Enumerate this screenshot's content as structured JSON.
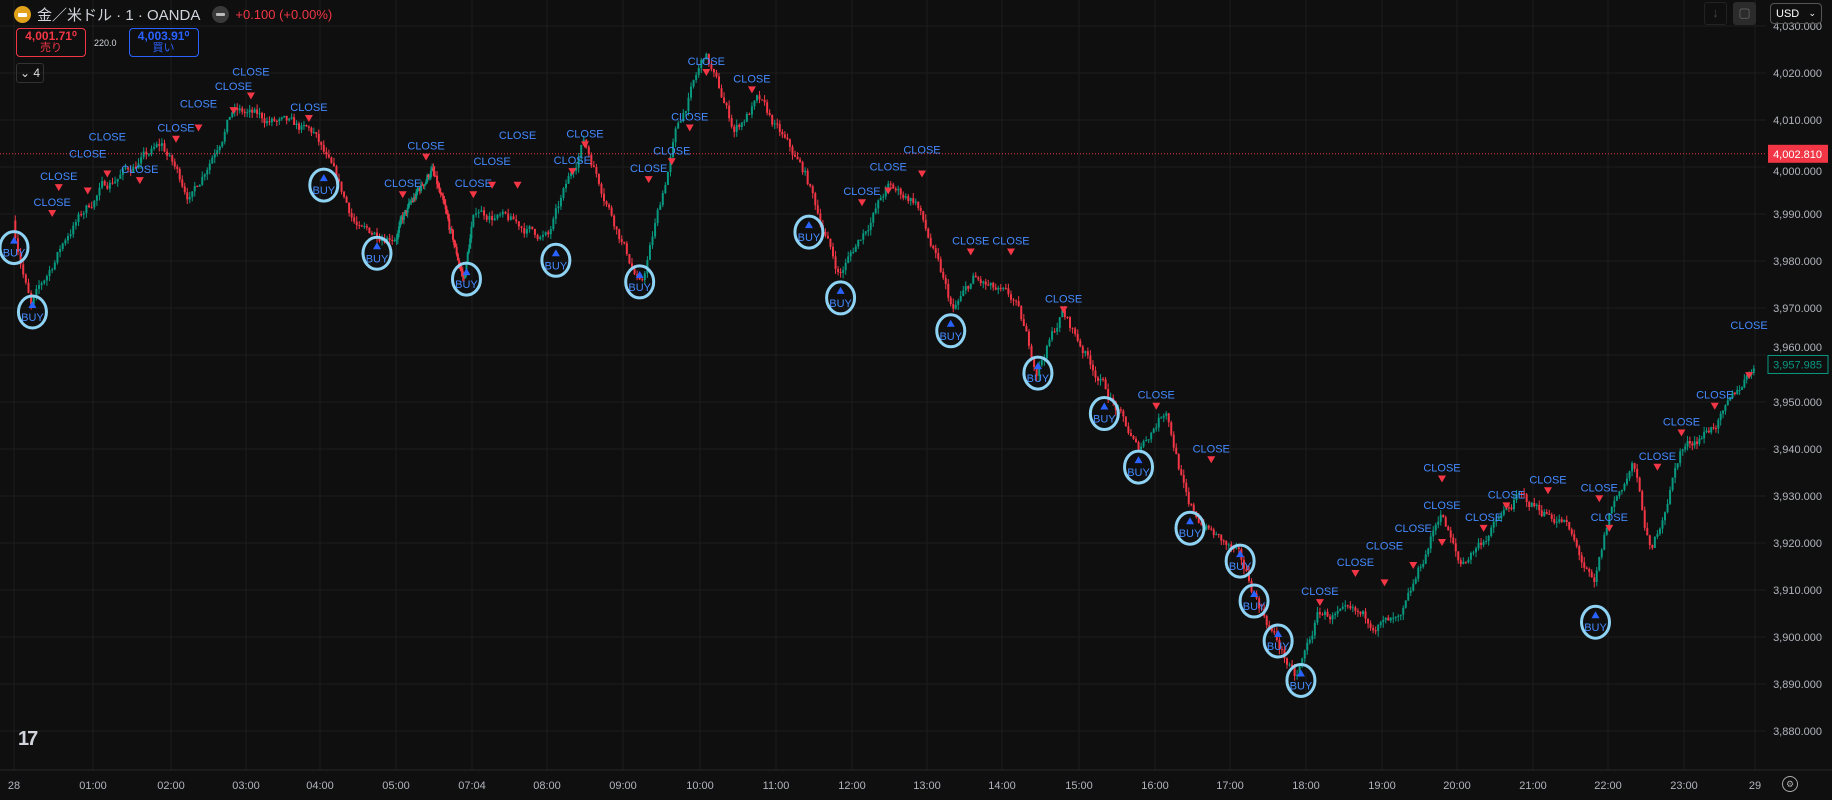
{
  "header": {
    "symbol_title": "金／米ドル · 1 · OANDA",
    "change": "+0.100 (+0.00%)",
    "sell_price": "4,001.71⁰",
    "sell_label": "売り",
    "spread": "220.0",
    "buy_price": "4,003.91⁰",
    "buy_label": "買い",
    "indicators_count": "4"
  },
  "toolbar": {
    "currency": "USD"
  },
  "colors": {
    "background": "#0f0f0f",
    "up": "#089981",
    "down": "#f23645",
    "marker_text": "#448aff",
    "buy_marker": "#2962ff",
    "highlight_circle": "#8fd3f4",
    "price_line": "#f23645"
  },
  "chart_data": {
    "type": "candlestick",
    "price_axis": {
      "ticks": [
        "4,030.000",
        "4,020.000",
        "4,010.000",
        "4,000.000",
        "3,990.000",
        "3,980.000",
        "3,970.000",
        "3,960.000",
        "3,950.000",
        "3,940.000",
        "3,930.000",
        "3,920.000",
        "3,910.000",
        "3,900.000",
        "3,890.000",
        "3,880.000"
      ],
      "ylim": [
        3873,
        4032
      ],
      "last_close_price": "4,002.810",
      "current_price": "3,957.985"
    },
    "time_axis": {
      "ticks": [
        "28",
        "01:00",
        "02:00",
        "03:00",
        "04:00",
        "05:00",
        "07:04",
        "08:00",
        "09:00",
        "10:00",
        "11:00",
        "12:00",
        "13:00",
        "14:00",
        "15:00",
        "16:00",
        "17:00",
        "18:00",
        "19:00",
        "20:00",
        "21:00",
        "22:00",
        "23:00",
        "29"
      ]
    },
    "grid": true,
    "price_path": [
      [
        "00:00",
        3988.6
      ],
      [
        "00:14",
        3970
      ],
      [
        "00:42",
        3986
      ],
      [
        "01:09",
        3996
      ],
      [
        "01:54",
        4004.5
      ],
      [
        "02:17",
        3993.5
      ],
      [
        "02:50",
        4012
      ],
      [
        "03:18",
        4010
      ],
      [
        "03:56",
        4007
      ],
      [
        "04:33",
        3986
      ],
      [
        "05:01",
        3986
      ],
      [
        "05:59",
        3999.7
      ],
      [
        "06:52",
        3976
      ],
      [
        "07:09",
        3991
      ],
      [
        "08:02",
        3985
      ],
      [
        "08:30",
        4006
      ],
      [
        "09:15",
        3974
      ],
      [
        "09:43",
        4008
      ],
      [
        "10:05",
        4024
      ],
      [
        "10:28",
        4008
      ],
      [
        "10:47",
        4014
      ],
      [
        "11:24",
        3998.4
      ],
      [
        "11:51",
        3977
      ],
      [
        "12:29",
        3995.5
      ],
      [
        "12:52",
        3993
      ],
      [
        "13:22",
        3969
      ],
      [
        "13:38",
        3976
      ],
      [
        "14:11",
        3971
      ],
      [
        "14:28",
        3957
      ],
      [
        "14:48",
        3969
      ],
      [
        "15:24",
        3952
      ],
      [
        "15:47",
        3939.6
      ],
      [
        "16:10",
        3949
      ],
      [
        "16:28",
        3927
      ],
      [
        "17:07",
        3917
      ],
      [
        "17:53",
        3890.5
      ],
      [
        "18:11",
        3905
      ],
      [
        "19:16",
        3902.5
      ],
      [
        "19:48",
        3927
      ],
      [
        "20:03",
        3915
      ],
      [
        "20:49",
        3929.6
      ],
      [
        "21:26",
        3924.6
      ],
      [
        "21:50",
        3910
      ],
      [
        "22:03",
        3927
      ],
      [
        "22:21",
        3937
      ],
      [
        "22:35",
        3917
      ],
      [
        "22:58",
        3939.6
      ],
      [
        "23:35",
        3947
      ],
      [
        "23:59",
        3957.985
      ]
    ],
    "buy_markers": [
      {
        "time": "00:00",
        "price": 3983.7,
        "label": "BUY"
      },
      {
        "time": "00:14",
        "price": 3970,
        "label": "BUY"
      },
      {
        "time": "04:03",
        "price": 3997,
        "label": "BUY"
      },
      {
        "time": "04:45",
        "price": 3982.5,
        "label": "BUY"
      },
      {
        "time": "06:55",
        "price": 3977,
        "label": "BUY"
      },
      {
        "time": "08:07",
        "price": 3981,
        "label": "BUY"
      },
      {
        "time": "09:13",
        "price": 3976.4,
        "label": "BUY"
      },
      {
        "time": "11:26",
        "price": 3987,
        "label": "BUY"
      },
      {
        "time": "11:51",
        "price": 3973,
        "label": "BUY"
      },
      {
        "time": "13:19",
        "price": 3966,
        "label": "BUY"
      },
      {
        "time": "14:28",
        "price": 3957,
        "label": "BUY"
      },
      {
        "time": "15:20",
        "price": 3948.4,
        "label": "BUY"
      },
      {
        "time": "15:47",
        "price": 3937,
        "label": "BUY"
      },
      {
        "time": "16:28",
        "price": 3924,
        "label": "BUY"
      },
      {
        "time": "17:08",
        "price": 3917,
        "label": "BUY"
      },
      {
        "time": "17:19",
        "price": 3908.5,
        "label": "BUY"
      },
      {
        "time": "17:38",
        "price": 3900,
        "label": "BUY"
      },
      {
        "time": "17:56",
        "price": 3891.6,
        "label": "BUY"
      },
      {
        "time": "21:50",
        "price": 3904,
        "label": "BUY"
      }
    ],
    "close_markers": [
      [
        "00:34",
        3995.5
      ],
      [
        "00:29",
        3990
      ],
      [
        "00:56",
        3994.8
      ],
      [
        "01:11",
        3998.4
      ],
      [
        "01:36",
        3997
      ],
      [
        "02:04",
        4005.8
      ],
      [
        "02:22",
        4008.2
      ],
      [
        "02:50",
        4011.9
      ],
      [
        "03:04",
        4015
      ],
      [
        "03:51",
        4010.2
      ],
      [
        "05:11",
        3994
      ],
      [
        "05:49",
        4002
      ],
      [
        "07:05",
        3994
      ],
      [
        "07:19",
        3996
      ],
      [
        "07:38",
        3996
      ],
      [
        "08:20",
        3998.9
      ],
      [
        "08:30",
        4004.6
      ],
      [
        "09:20",
        3997.2
      ],
      [
        "09:38",
        4001
      ],
      [
        "09:52",
        4008.2
      ],
      [
        "10:05",
        4020
      ],
      [
        "10:41",
        4016.3
      ],
      [
        "12:08",
        3992.3
      ],
      [
        "12:29",
        3994.8
      ],
      [
        "12:56",
        3998.4
      ],
      [
        "13:35",
        3981.8
      ],
      [
        "14:07",
        3981.8
      ],
      [
        "14:48",
        3969.5
      ],
      [
        "16:01",
        3949
      ],
      [
        "16:45",
        3937.6
      ],
      [
        "18:11",
        3907.2
      ],
      [
        "18:39",
        3913.4
      ],
      [
        "19:02",
        3911.4
      ],
      [
        "19:25",
        3915.1
      ],
      [
        "19:48",
        3920
      ],
      [
        "19:48",
        3933.5
      ],
      [
        "20:21",
        3923
      ],
      [
        "20:39",
        3927.8
      ],
      [
        "21:12",
        3931
      ],
      [
        "21:53",
        3929.3
      ],
      [
        "22:01",
        3923
      ],
      [
        "22:39",
        3936
      ],
      [
        "22:58",
        3943.3
      ],
      [
        "23:26",
        3949
      ],
      [
        "23:55",
        3955.5
      ]
    ],
    "close_label": "CLOSE"
  }
}
